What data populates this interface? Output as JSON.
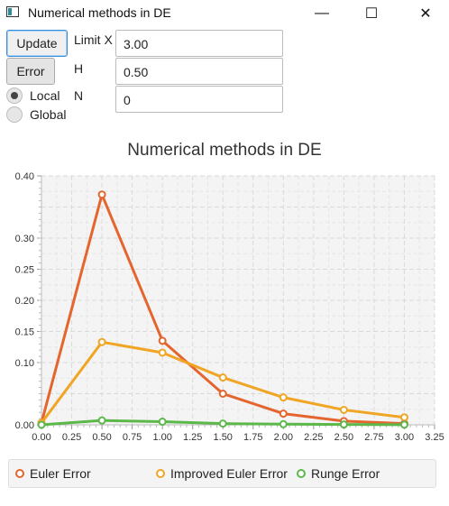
{
  "window": {
    "title": "Numerical methods in DE",
    "minimize": "—",
    "maximize": "☐",
    "close": "✕"
  },
  "controls": {
    "update_label": "Update",
    "error_label": "Error",
    "limit_x_label": "Limit X",
    "h_label": "H",
    "n_label": "N",
    "limit_x_value": "3.00",
    "h_value": "0.50",
    "n_value": "0",
    "local_label": "Local",
    "global_label": "Global",
    "selected_mode": "Local"
  },
  "chart_data": {
    "type": "line",
    "title": "Numerical methods in DE",
    "xlabel": "",
    "ylabel": "",
    "xlim": [
      0,
      3.25
    ],
    "ylim": [
      0,
      0.4
    ],
    "x_ticks": [
      "0.00",
      "0.25",
      "0.50",
      "0.75",
      "1.00",
      "1.25",
      "1.50",
      "1.75",
      "2.00",
      "2.25",
      "2.50",
      "2.75",
      "3.00",
      "3.25"
    ],
    "y_ticks": [
      "0.00",
      "0.10",
      "0.15",
      "0.20",
      "0.25",
      "0.30",
      "0.40"
    ],
    "grid": true,
    "legend_position": "bottom",
    "x": [
      0,
      0.5,
      1.0,
      1.5,
      2.0,
      2.5,
      3.0
    ],
    "series": [
      {
        "name": "Euler Error",
        "color": "#e4652e",
        "values": [
          0.003,
          0.37,
          0.135,
          0.05,
          0.018,
          0.006,
          0.002
        ]
      },
      {
        "name": "Improved Euler Error",
        "color": "#f0a524",
        "values": [
          0.003,
          0.133,
          0.116,
          0.076,
          0.044,
          0.024,
          0.012
        ]
      },
      {
        "name": "Runge Error",
        "color": "#5cb84a",
        "values": [
          0.0,
          0.007,
          0.005,
          0.002,
          0.001,
          0.0005,
          0.0002
        ]
      }
    ]
  }
}
